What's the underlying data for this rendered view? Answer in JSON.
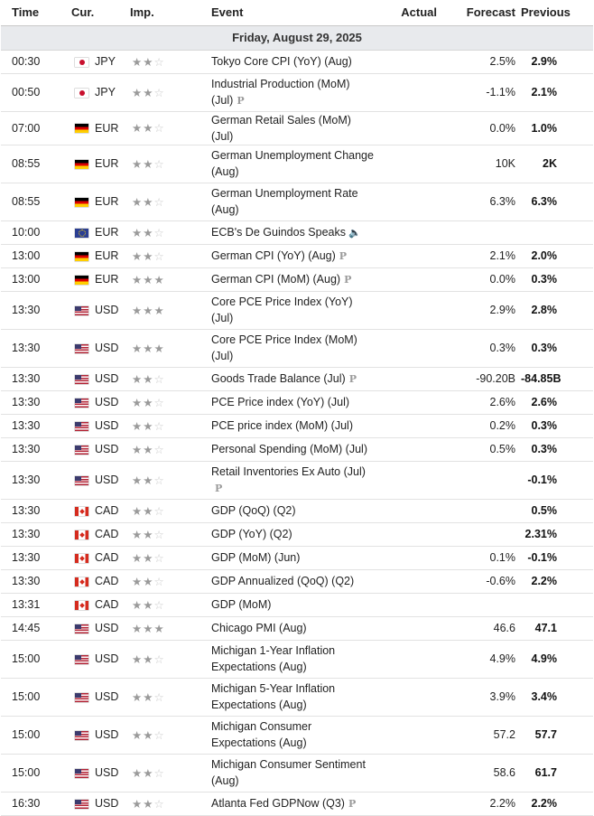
{
  "headers": {
    "time": "Time",
    "currency": "Cur.",
    "importance": "Imp.",
    "event": "Event",
    "actual": "Actual",
    "forecast": "Forecast",
    "previous": "Previous"
  },
  "date_label": "Friday, August 29, 2025",
  "star_glyphs": {
    "on": "★",
    "off": "☆"
  },
  "icons": {
    "preliminary": "P",
    "speaker": "🔈"
  },
  "colors": {
    "header_band": "#e8eaed",
    "star_on": "#9a9a9a",
    "star_off": "#c9c9c9",
    "prelim": "#9b9b9b"
  },
  "rows": [
    {
      "time": "00:30",
      "currency": "JPY",
      "flag": "jpy",
      "stars": 2,
      "event": "Tokyo Core CPI (YoY) (Aug)",
      "actual": "",
      "forecast": "2.5%",
      "previous": "2.9%",
      "prelim": false,
      "speaker": false
    },
    {
      "time": "00:50",
      "currency": "JPY",
      "flag": "jpy",
      "stars": 2,
      "event": "Industrial Production (MoM) (Jul)",
      "actual": "",
      "forecast": "-1.1%",
      "previous": "2.1%",
      "prelim": true,
      "speaker": false
    },
    {
      "time": "07:00",
      "currency": "EUR",
      "flag": "de",
      "stars": 2,
      "event": "German Retail Sales (MoM) (Jul)",
      "actual": "",
      "forecast": "0.0%",
      "previous": "1.0%",
      "prelim": false,
      "speaker": false
    },
    {
      "time": "08:55",
      "currency": "EUR",
      "flag": "de",
      "stars": 2,
      "event": "German Unemployment Change (Aug)",
      "actual": "",
      "forecast": "10K",
      "previous": "2K",
      "prelim": false,
      "speaker": false
    },
    {
      "time": "08:55",
      "currency": "EUR",
      "flag": "de",
      "stars": 2,
      "event": "German Unemployment Rate (Aug)",
      "actual": "",
      "forecast": "6.3%",
      "previous": "6.3%",
      "prelim": false,
      "speaker": false
    },
    {
      "time": "10:00",
      "currency": "EUR",
      "flag": "eu",
      "stars": 2,
      "event": "ECB's De Guindos Speaks",
      "actual": "",
      "forecast": "",
      "previous": "",
      "prelim": false,
      "speaker": true
    },
    {
      "time": "13:00",
      "currency": "EUR",
      "flag": "de",
      "stars": 2,
      "event": "German CPI (YoY) (Aug)",
      "actual": "",
      "forecast": "2.1%",
      "previous": "2.0%",
      "prelim": true,
      "speaker": false
    },
    {
      "time": "13:00",
      "currency": "EUR",
      "flag": "de",
      "stars": 3,
      "event": "German CPI (MoM) (Aug)",
      "actual": "",
      "forecast": "0.0%",
      "previous": "0.3%",
      "prelim": true,
      "speaker": false
    },
    {
      "time": "13:30",
      "currency": "USD",
      "flag": "usd",
      "stars": 3,
      "event": "Core PCE Price Index (YoY) (Jul)",
      "actual": "",
      "forecast": "2.9%",
      "previous": "2.8%",
      "prelim": false,
      "speaker": false
    },
    {
      "time": "13:30",
      "currency": "USD",
      "flag": "usd",
      "stars": 3,
      "event": "Core PCE Price Index (MoM) (Jul)",
      "actual": "",
      "forecast": "0.3%",
      "previous": "0.3%",
      "prelim": false,
      "speaker": false
    },
    {
      "time": "13:30",
      "currency": "USD",
      "flag": "usd",
      "stars": 2,
      "event": "Goods Trade Balance (Jul)",
      "actual": "",
      "forecast": "-90.20B",
      "previous": "-84.85B",
      "prelim": true,
      "speaker": false
    },
    {
      "time": "13:30",
      "currency": "USD",
      "flag": "usd",
      "stars": 2,
      "event": "PCE Price index (YoY) (Jul)",
      "actual": "",
      "forecast": "2.6%",
      "previous": "2.6%",
      "prelim": false,
      "speaker": false
    },
    {
      "time": "13:30",
      "currency": "USD",
      "flag": "usd",
      "stars": 2,
      "event": "PCE price index (MoM) (Jul)",
      "actual": "",
      "forecast": "0.2%",
      "previous": "0.3%",
      "prelim": false,
      "speaker": false
    },
    {
      "time": "13:30",
      "currency": "USD",
      "flag": "usd",
      "stars": 2,
      "event": "Personal Spending (MoM) (Jul)",
      "actual": "",
      "forecast": "0.5%",
      "previous": "0.3%",
      "prelim": false,
      "speaker": false
    },
    {
      "time": "13:30",
      "currency": "USD",
      "flag": "usd",
      "stars": 2,
      "event": "Retail Inventories Ex Auto (Jul)",
      "actual": "",
      "forecast": "",
      "previous": "-0.1%",
      "prelim": true,
      "speaker": false
    },
    {
      "time": "13:30",
      "currency": "CAD",
      "flag": "cad",
      "stars": 2,
      "event": "GDP (QoQ) (Q2)",
      "actual": "",
      "forecast": "",
      "previous": "0.5%",
      "prelim": false,
      "speaker": false
    },
    {
      "time": "13:30",
      "currency": "CAD",
      "flag": "cad",
      "stars": 2,
      "event": "GDP (YoY) (Q2)",
      "actual": "",
      "forecast": "",
      "previous": "2.31%",
      "prelim": false,
      "speaker": false
    },
    {
      "time": "13:30",
      "currency": "CAD",
      "flag": "cad",
      "stars": 2,
      "event": "GDP (MoM) (Jun)",
      "actual": "",
      "forecast": "0.1%",
      "previous": "-0.1%",
      "prelim": false,
      "speaker": false
    },
    {
      "time": "13:30",
      "currency": "CAD",
      "flag": "cad",
      "stars": 2,
      "event": "GDP Annualized (QoQ) (Q2)",
      "actual": "",
      "forecast": "-0.6%",
      "previous": "2.2%",
      "prelim": false,
      "speaker": false
    },
    {
      "time": "13:31",
      "currency": "CAD",
      "flag": "cad",
      "stars": 2,
      "event": "GDP (MoM)",
      "actual": "",
      "forecast": "",
      "previous": "",
      "prelim": false,
      "speaker": false
    },
    {
      "time": "14:45",
      "currency": "USD",
      "flag": "usd",
      "stars": 3,
      "event": "Chicago PMI (Aug)",
      "actual": "",
      "forecast": "46.6",
      "previous": "47.1",
      "prelim": false,
      "speaker": false
    },
    {
      "time": "15:00",
      "currency": "USD",
      "flag": "usd",
      "stars": 2,
      "event": "Michigan 1-Year Inflation Expectations (Aug)",
      "actual": "",
      "forecast": "4.9%",
      "previous": "4.9%",
      "prelim": false,
      "speaker": false
    },
    {
      "time": "15:00",
      "currency": "USD",
      "flag": "usd",
      "stars": 2,
      "event": "Michigan 5-Year Inflation Expectations (Aug)",
      "actual": "",
      "forecast": "3.9%",
      "previous": "3.4%",
      "prelim": false,
      "speaker": false
    },
    {
      "time": "15:00",
      "currency": "USD",
      "flag": "usd",
      "stars": 2,
      "event": "Michigan Consumer Expectations (Aug)",
      "actual": "",
      "forecast": "57.2",
      "previous": "57.7",
      "prelim": false,
      "speaker": false
    },
    {
      "time": "15:00",
      "currency": "USD",
      "flag": "usd",
      "stars": 2,
      "event": "Michigan Consumer Sentiment (Aug)",
      "actual": "",
      "forecast": "58.6",
      "previous": "61.7",
      "prelim": false,
      "speaker": false
    },
    {
      "time": "16:30",
      "currency": "USD",
      "flag": "usd",
      "stars": 2,
      "event": "Atlanta Fed GDPNow (Q3)",
      "actual": "",
      "forecast": "2.2%",
      "previous": "2.2%",
      "prelim": true,
      "speaker": false
    }
  ]
}
